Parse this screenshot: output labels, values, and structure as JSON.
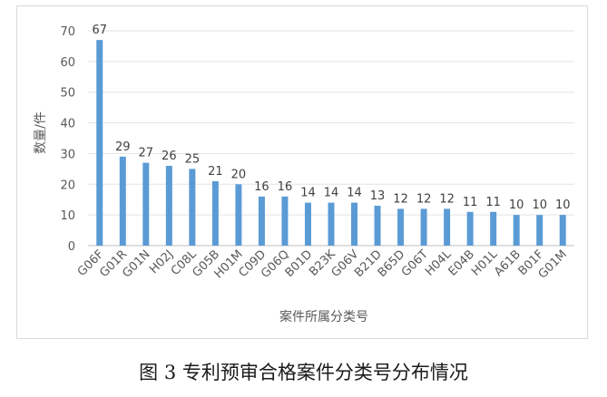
{
  "chart_data": {
    "type": "bar",
    "title": "",
    "xlabel": "案件所属分类号",
    "ylabel": "数量/件",
    "ylim": [
      0,
      70
    ],
    "yticks": [
      0,
      10,
      20,
      30,
      40,
      50,
      60,
      70
    ],
    "grid": true,
    "legend": "none",
    "bar_color": "#5b9bd5",
    "categories": [
      "G06F",
      "G01R",
      "G01N",
      "H02J",
      "C08L",
      "G05B",
      "H01M",
      "C09D",
      "G06Q",
      "B01D",
      "B23K",
      "G06V",
      "B21D",
      "B65D",
      "G06T",
      "H04L",
      "E04B",
      "H01L",
      "A61B",
      "B01F",
      "G01M"
    ],
    "values": [
      67,
      29,
      27,
      26,
      25,
      21,
      20,
      16,
      16,
      14,
      14,
      14,
      13,
      12,
      12,
      12,
      11,
      11,
      10,
      10,
      10
    ]
  },
  "caption": "图 3 专利预审合格案件分类号分布情况"
}
